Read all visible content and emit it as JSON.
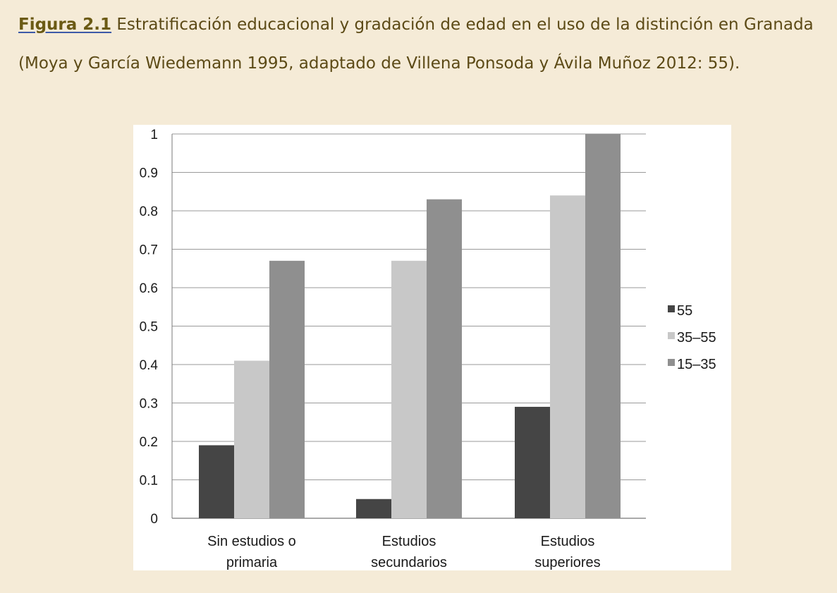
{
  "caption": {
    "figure_label": "Figura 2.1",
    "text": " Estratificación educacional y gradación de edad en el uso de la distinción en Granada (Moya y García Wiedemann 1995, adaptado de Villena Ponsoda y Ávila Muñoz 2012: 55)."
  },
  "colors": {
    "background": "#f5ebd7",
    "caption_text": "#5c4a16",
    "grid": "#9a9a9a",
    "series_55": "#454545",
    "series_35_55": "#c8c8c8",
    "series_15_35": "#8f8f8f"
  },
  "chart_data": {
    "type": "bar",
    "categories": [
      [
        "Sin estudios o",
        "primaria"
      ],
      [
        "Estudios",
        "secundarios"
      ],
      [
        "Estudios",
        "superiores"
      ]
    ],
    "series": [
      {
        "name": "55",
        "values": [
          0.19,
          0.05,
          0.29
        ],
        "color": "#454545"
      },
      {
        "name": "35–55",
        "values": [
          0.41,
          0.67,
          0.84
        ],
        "color": "#c8c8c8"
      },
      {
        "name": "15–35",
        "values": [
          0.67,
          0.83,
          1.0
        ],
        "color": "#8f8f8f"
      }
    ],
    "yticks": [
      "0",
      "0.1",
      "0.2",
      "0.3",
      "0.4",
      "0.5",
      "0.6",
      "0.7",
      "0.8",
      "0.9",
      "1"
    ],
    "ylim": [
      0,
      1
    ],
    "grid": true,
    "legend_position": "right"
  }
}
